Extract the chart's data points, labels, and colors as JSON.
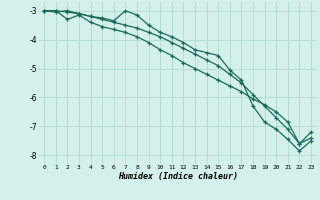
{
  "title": "",
  "xlabel": "Humidex (Indice chaleur)",
  "ylabel": "",
  "bg_color": "#d4f0eb",
  "grid_color": "#b8ddd7",
  "line_color": "#1a6b5a",
  "xlim": [
    -0.5,
    23.5
  ],
  "ylim": [
    -8.3,
    -2.7
  ],
  "xticks": [
    0,
    1,
    2,
    3,
    4,
    5,
    6,
    7,
    8,
    9,
    10,
    11,
    12,
    13,
    14,
    15,
    16,
    17,
    18,
    19,
    20,
    21,
    22,
    23
  ],
  "yticks": [
    -8,
    -7,
    -6,
    -5,
    -4,
    -3
  ],
  "line1_x": [
    0,
    1,
    2,
    3,
    4,
    5,
    6,
    7,
    8,
    9,
    10,
    11,
    12,
    13,
    14,
    15,
    16,
    17,
    18,
    19,
    20,
    21,
    22,
    23
  ],
  "line1_y": [
    -3.0,
    -3.0,
    -3.05,
    -3.1,
    -3.2,
    -3.25,
    -3.35,
    -3.0,
    -3.15,
    -3.5,
    -3.75,
    -3.9,
    -4.1,
    -4.35,
    -4.45,
    -4.55,
    -5.05,
    -5.4,
    -6.3,
    -6.85,
    -7.1,
    -7.45,
    -7.85,
    -7.5
  ],
  "line2_x": [
    0,
    1,
    2,
    3,
    4,
    5,
    6,
    7,
    8,
    9,
    10,
    11,
    12,
    13,
    14,
    15,
    16,
    17,
    18,
    19,
    20,
    21,
    22,
    23
  ],
  "line2_y": [
    -3.0,
    -3.05,
    -3.0,
    -3.1,
    -3.2,
    -3.3,
    -3.4,
    -3.5,
    -3.6,
    -3.75,
    -3.9,
    -4.1,
    -4.3,
    -4.5,
    -4.7,
    -4.9,
    -5.2,
    -5.5,
    -5.9,
    -6.3,
    -6.7,
    -7.1,
    -7.6,
    -7.4
  ],
  "line3_x": [
    0,
    1,
    2,
    3,
    4,
    5,
    6,
    7,
    8,
    9,
    10,
    11,
    12,
    13,
    14,
    15,
    16,
    17,
    18,
    19,
    20,
    21,
    22,
    23
  ],
  "line3_y": [
    -3.0,
    -3.0,
    -3.3,
    -3.15,
    -3.4,
    -3.55,
    -3.65,
    -3.75,
    -3.9,
    -4.1,
    -4.35,
    -4.55,
    -4.8,
    -5.0,
    -5.2,
    -5.4,
    -5.6,
    -5.8,
    -6.05,
    -6.25,
    -6.5,
    -6.85,
    -7.6,
    -7.2
  ]
}
